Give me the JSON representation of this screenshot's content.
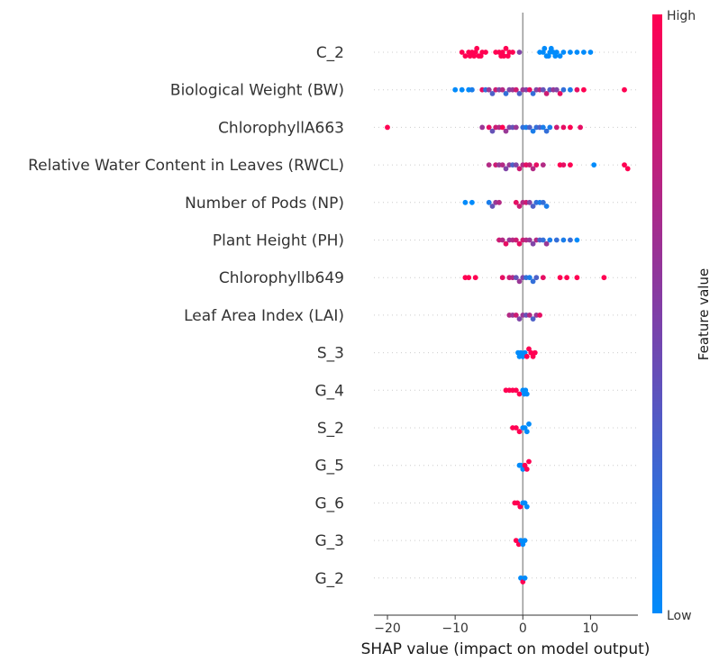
{
  "chart_data": {
    "type": "scatter",
    "subtype": "shap-beeswarm",
    "xlabel": "SHAP value (impact on model output)",
    "xlim": [
      -22,
      17
    ],
    "x_ticks": [
      -20,
      -10,
      0,
      10
    ],
    "x_tick_labels": [
      "−20",
      "−10",
      "0",
      "10"
    ],
    "colorbar": {
      "label": "Feature value",
      "high_label": "High",
      "low_label": "Low",
      "low_color": "#008bfb",
      "high_color": "#ff0052"
    },
    "features": [
      {
        "name": "C_2",
        "points": [
          [
            -9,
            1
          ],
          [
            -8.5,
            1
          ],
          [
            -8,
            1
          ],
          [
            -7.5,
            1
          ],
          [
            -7,
            1
          ],
          [
            -6.5,
            1
          ],
          [
            -6,
            1
          ],
          [
            -5.5,
            1
          ],
          [
            -7.2,
            1
          ],
          [
            -6.8,
            1
          ],
          [
            -7.8,
            1
          ],
          [
            -6.2,
            1
          ],
          [
            -3.5,
            1
          ],
          [
            -3,
            1
          ],
          [
            -2.8,
            1
          ],
          [
            -2.5,
            1
          ],
          [
            -2,
            1
          ],
          [
            -3.2,
            1
          ],
          [
            -2.2,
            1
          ],
          [
            -4,
            1
          ],
          [
            -1.5,
            1
          ],
          [
            -0.5,
            0.5
          ],
          [
            2.5,
            0
          ],
          [
            3,
            0
          ],
          [
            3.5,
            0
          ],
          [
            4,
            0
          ],
          [
            4.5,
            0
          ],
          [
            5,
            0
          ],
          [
            3.8,
            0
          ],
          [
            4.2,
            0
          ],
          [
            3.2,
            0
          ],
          [
            4.8,
            0
          ],
          [
            5.5,
            0
          ],
          [
            6,
            0
          ],
          [
            7,
            0
          ],
          [
            8,
            0
          ],
          [
            9,
            0
          ],
          [
            10,
            0
          ]
        ]
      },
      {
        "name": "Biological Weight (BW)",
        "points": [
          [
            -10,
            0
          ],
          [
            -9,
            0
          ],
          [
            -8,
            0
          ],
          [
            -7.5,
            0.1
          ],
          [
            -6,
            0.9
          ],
          [
            -5.5,
            0.2
          ],
          [
            -5,
            0.6
          ],
          [
            -4.5,
            0.3
          ],
          [
            -4,
            0.8
          ],
          [
            -3.5,
            0.5
          ],
          [
            -3,
            0.7
          ],
          [
            -2.5,
            0.2
          ],
          [
            -2,
            0.5
          ],
          [
            -1.5,
            0.6
          ],
          [
            -1,
            0.8
          ],
          [
            -0.5,
            0.3
          ],
          [
            0,
            0.6
          ],
          [
            0.5,
            0.5
          ],
          [
            1,
            0.9
          ],
          [
            1.5,
            0.2
          ],
          [
            2,
            0.5
          ],
          [
            2.5,
            0.7
          ],
          [
            3,
            0.4
          ],
          [
            3.5,
            0.8
          ],
          [
            4,
            0.3
          ],
          [
            4.5,
            0.6
          ],
          [
            5,
            0.5
          ],
          [
            5.5,
            0.9
          ],
          [
            6,
            0.2
          ],
          [
            7,
            0.1
          ],
          [
            8,
            0.9
          ],
          [
            9,
            1
          ],
          [
            15,
            1
          ]
        ]
      },
      {
        "name": "ChlorophyllA663",
        "points": [
          [
            -20,
            1
          ],
          [
            -6,
            0.6
          ],
          [
            -5,
            0.9
          ],
          [
            -4.5,
            0.4
          ],
          [
            -4,
            0.8
          ],
          [
            -3.5,
            0.7
          ],
          [
            -3,
            1
          ],
          [
            -2.5,
            0.6
          ],
          [
            -2,
            0.5
          ],
          [
            -1.5,
            0.4
          ],
          [
            -1,
            0.6
          ],
          [
            0,
            0.2
          ],
          [
            0.5,
            0.1
          ],
          [
            1,
            0.3
          ],
          [
            1.5,
            0.1
          ],
          [
            2,
            0.2
          ],
          [
            2.5,
            0.3
          ],
          [
            3,
            0.1
          ],
          [
            3.5,
            0.2
          ],
          [
            4,
            0.1
          ],
          [
            5,
            0.8
          ],
          [
            6,
            0.9
          ],
          [
            7,
            1
          ],
          [
            8.5,
            0.9
          ]
        ]
      },
      {
        "name": "Relative Water Content in Leaves (RWCL)",
        "points": [
          [
            -5,
            0.7
          ],
          [
            -4,
            0.8
          ],
          [
            -3.5,
            0.6
          ],
          [
            -3,
            0.7
          ],
          [
            -2.5,
            0.5
          ],
          [
            -2,
            0.6
          ],
          [
            -1.5,
            0.3
          ],
          [
            -1,
            0.5
          ],
          [
            -0.5,
            0.8
          ],
          [
            0,
            0.7
          ],
          [
            0.5,
            0.9
          ],
          [
            1,
            0.8
          ],
          [
            1.5,
            0.7
          ],
          [
            2,
            0.9
          ],
          [
            3,
            0.7
          ],
          [
            5.5,
            1
          ],
          [
            6,
            0.9
          ],
          [
            7,
            1
          ],
          [
            10.5,
            0
          ],
          [
            15,
            1
          ],
          [
            15.5,
            1
          ]
        ]
      },
      {
        "name": "Number of Pods (NP)",
        "points": [
          [
            -8.5,
            0
          ],
          [
            -7.5,
            0
          ],
          [
            -5,
            0.1
          ],
          [
            -4.5,
            0.4
          ],
          [
            -4,
            0.6
          ],
          [
            -3.5,
            0.7
          ],
          [
            -1,
            0.9
          ],
          [
            -0.5,
            0.8
          ],
          [
            0,
            0.7
          ],
          [
            0.5,
            0.8
          ],
          [
            1,
            0.5
          ],
          [
            1.5,
            0.3
          ],
          [
            2,
            0.2
          ],
          [
            2.5,
            0.1
          ],
          [
            3,
            0.2
          ],
          [
            3.5,
            0.1
          ]
        ]
      },
      {
        "name": "Plant Height (PH)",
        "points": [
          [
            -3.5,
            0.8
          ],
          [
            -3,
            0.7
          ],
          [
            -2.5,
            0.9
          ],
          [
            -2,
            0.6
          ],
          [
            -1.5,
            0.7
          ],
          [
            -1,
            0.8
          ],
          [
            -0.5,
            0.9
          ],
          [
            0,
            0.8
          ],
          [
            0.5,
            0.7
          ],
          [
            1,
            0.6
          ],
          [
            1.5,
            0.5
          ],
          [
            2,
            0.7
          ],
          [
            2.5,
            0.3
          ],
          [
            3,
            0.2
          ],
          [
            3.5,
            0.6
          ],
          [
            4,
            0.1
          ],
          [
            5,
            0.2
          ],
          [
            6,
            0.1
          ],
          [
            7,
            0.2
          ],
          [
            8,
            0
          ]
        ]
      },
      {
        "name": "Chlorophyllb649",
        "points": [
          [
            -8.5,
            1
          ],
          [
            -8,
            1
          ],
          [
            -7,
            1
          ],
          [
            -3,
            0.9
          ],
          [
            -2,
            0.8
          ],
          [
            -1.5,
            0.7
          ],
          [
            -1,
            0.4
          ],
          [
            -0.5,
            0.6
          ],
          [
            0,
            0.5
          ],
          [
            0.5,
            0.2
          ],
          [
            1,
            0.1
          ],
          [
            1.5,
            0.2
          ],
          [
            2,
            0.3
          ],
          [
            3,
            0.9
          ],
          [
            5.5,
            1
          ],
          [
            6.5,
            1
          ],
          [
            8,
            1
          ],
          [
            12,
            1
          ]
        ]
      },
      {
        "name": "Leaf Area Index (LAI)",
        "points": [
          [
            -2,
            0.7
          ],
          [
            -1.5,
            0.6
          ],
          [
            -1,
            0.8
          ],
          [
            -0.5,
            0.5
          ],
          [
            0,
            0.6
          ],
          [
            0.5,
            0.4
          ],
          [
            1,
            0.7
          ],
          [
            1.5,
            0.3
          ],
          [
            2,
            0.6
          ],
          [
            2.5,
            0.9
          ]
        ]
      },
      {
        "name": "S_3",
        "points": [
          [
            -0.7,
            0
          ],
          [
            -0.5,
            0
          ],
          [
            -0.3,
            0
          ],
          [
            0,
            0
          ],
          [
            0.3,
            0
          ],
          [
            0.6,
            1
          ],
          [
            0.9,
            1
          ],
          [
            1.2,
            1
          ],
          [
            1.5,
            1
          ],
          [
            1.8,
            1
          ]
        ]
      },
      {
        "name": "G_4",
        "points": [
          [
            -2.5,
            1
          ],
          [
            -2,
            1
          ],
          [
            -1.5,
            1
          ],
          [
            -1,
            1
          ],
          [
            -0.5,
            1
          ],
          [
            0,
            0
          ],
          [
            0.2,
            0
          ],
          [
            0.4,
            0
          ],
          [
            0.6,
            0
          ]
        ]
      },
      {
        "name": "S_2",
        "points": [
          [
            -1.5,
            1
          ],
          [
            -1,
            1
          ],
          [
            -0.5,
            1
          ],
          [
            0,
            0
          ],
          [
            0.3,
            0
          ],
          [
            0.6,
            0
          ],
          [
            0.9,
            0
          ]
        ]
      },
      {
        "name": "G_5",
        "points": [
          [
            -0.5,
            0
          ],
          [
            -0.3,
            0
          ],
          [
            0,
            0
          ],
          [
            0.3,
            1
          ],
          [
            0.6,
            1
          ],
          [
            0.9,
            1
          ]
        ]
      },
      {
        "name": "G_6",
        "points": [
          [
            -1.2,
            1
          ],
          [
            -0.8,
            1
          ],
          [
            -0.4,
            1
          ],
          [
            0,
            0
          ],
          [
            0.3,
            0
          ],
          [
            0.6,
            0
          ]
        ]
      },
      {
        "name": "G_3",
        "points": [
          [
            -1,
            1
          ],
          [
            -0.6,
            1
          ],
          [
            -0.3,
            0
          ],
          [
            0,
            0
          ],
          [
            0.3,
            0
          ]
        ]
      },
      {
        "name": "G_2",
        "points": [
          [
            -0.3,
            0
          ],
          [
            0,
            1
          ],
          [
            0.3,
            0
          ]
        ]
      }
    ]
  }
}
